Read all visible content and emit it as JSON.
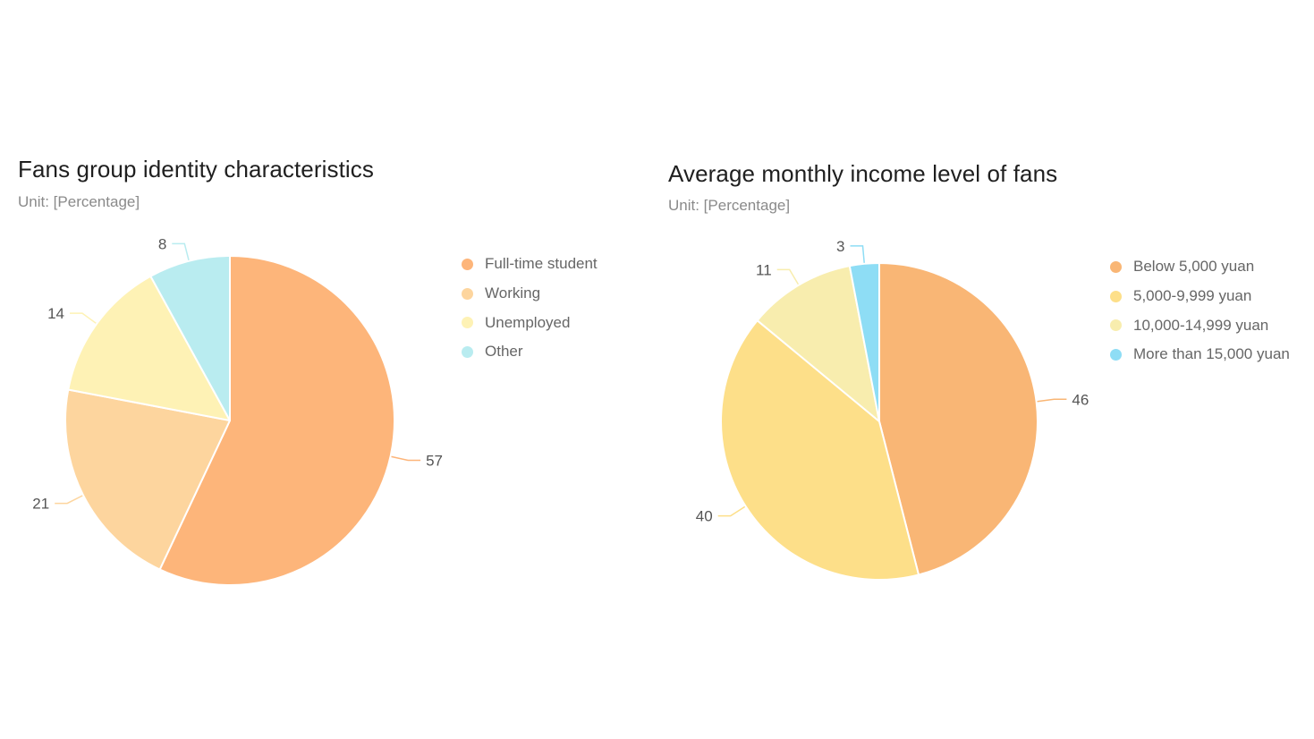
{
  "chart_data": [
    {
      "type": "pie",
      "title": "Fans group identity characteristics",
      "subtitle": "Unit: [Percentage]",
      "categories": [
        "Full-time student",
        "Working",
        "Unemployed",
        "Other"
      ],
      "values": [
        57,
        21,
        14,
        8
      ],
      "colors": [
        "#FDB57A",
        "#FDD59E",
        "#FEF2B5",
        "#B9ECF0"
      ],
      "start_angle": "12 o'clock",
      "direction": "clockwise",
      "legend_position": "right",
      "data_labels": "outside with leader lines"
    },
    {
      "type": "pie",
      "title": "Average monthly income level of fans",
      "subtitle": "Unit: [Percentage]",
      "categories": [
        "Below 5,000 yuan",
        "5,000-9,999 yuan",
        "10,000-14,999 yuan",
        "More than 15,000 yuan"
      ],
      "values": [
        46,
        40,
        11,
        3
      ],
      "colors": [
        "#F9B675",
        "#FDDF89",
        "#F8EDAE",
        "#8EDDF5"
      ],
      "start_angle": "12 o'clock",
      "direction": "clockwise",
      "legend_position": "right",
      "data_labels": "outside with leader lines"
    }
  ]
}
